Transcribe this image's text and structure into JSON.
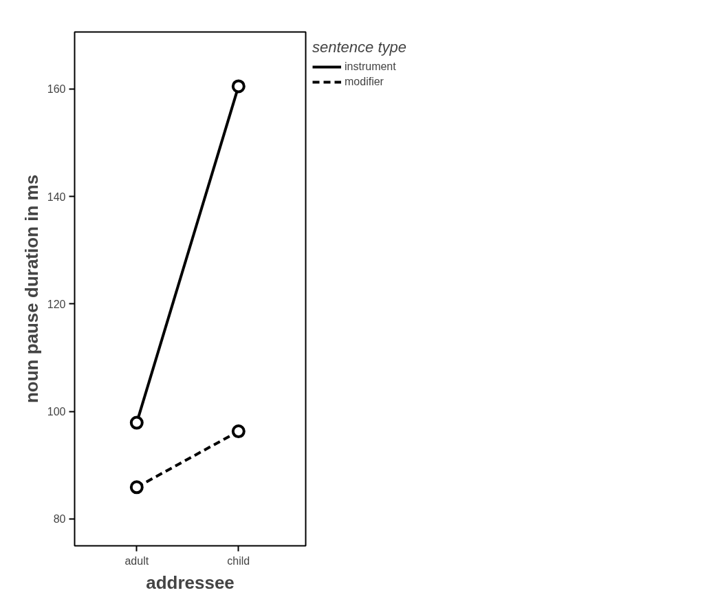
{
  "chart_data": {
    "type": "line",
    "xlabel": "addressee",
    "ylabel": "noun pause duration in ms",
    "legend_title": "sentence type",
    "categories": [
      "adult",
      "child"
    ],
    "series": [
      {
        "name": "instrument",
        "color": "#000000",
        "values": [
          97.9,
          160.5
        ],
        "line_style": "solid"
      },
      {
        "name": "modifier",
        "color": "#000000",
        "values": [
          85.9,
          96.3
        ],
        "line_style": "dashed"
      }
    ],
    "ylim": [
      75,
      170.6
    ],
    "yticks": [
      80,
      100,
      120,
      140,
      160
    ],
    "grid": false,
    "legend": "top right",
    "marker": "circle"
  }
}
